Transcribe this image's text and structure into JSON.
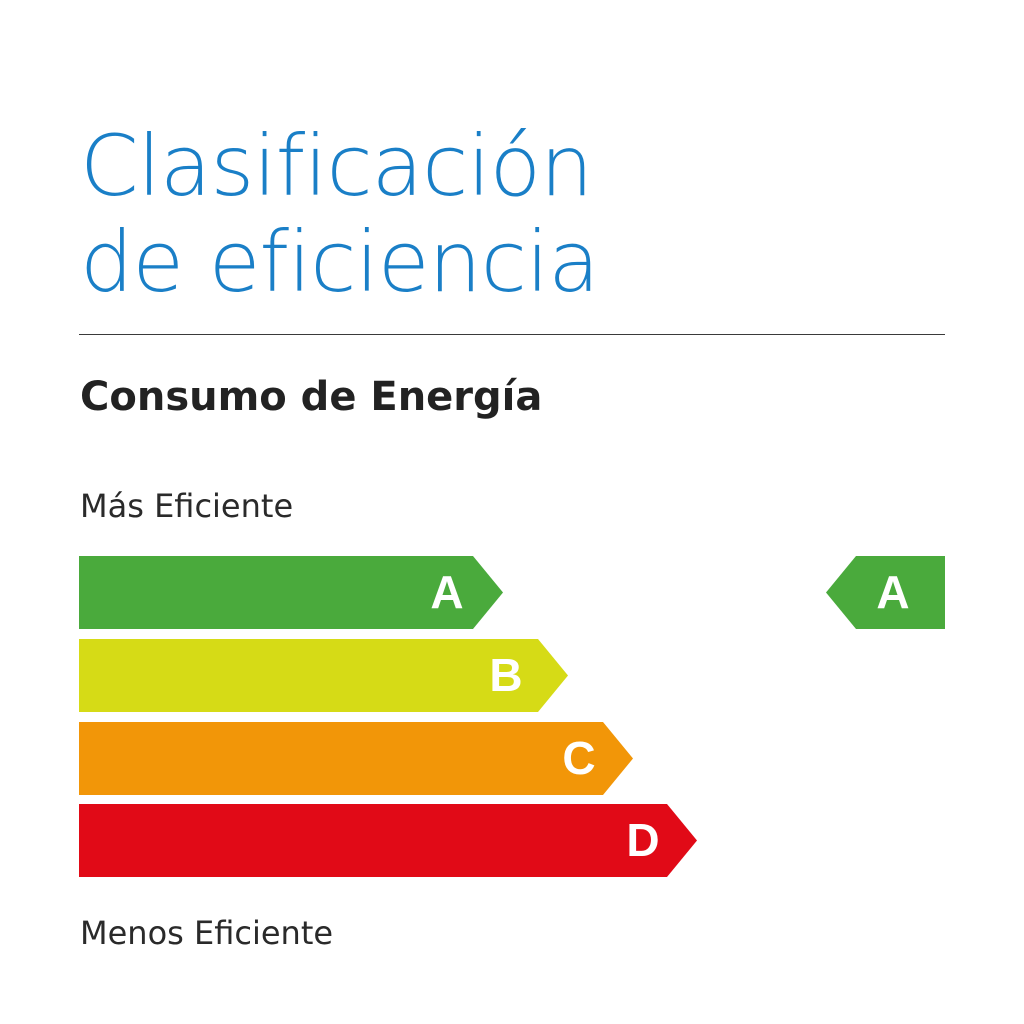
{
  "title": {
    "line1": "Clasificación",
    "line2": "de eficiencia"
  },
  "subtitle": "Consumo de Energía",
  "scale": {
    "top_label": "Más Eficiente",
    "bottom_label": "Menos Eficiente"
  },
  "bands": [
    {
      "letter": "A",
      "color": "#4aaa3c"
    },
    {
      "letter": "B",
      "color": "#d6db16"
    },
    {
      "letter": "C",
      "color": "#f29608"
    },
    {
      "letter": "D",
      "color": "#e10a17"
    }
  ],
  "rating": {
    "letter": "A",
    "color": "#4aaa3c"
  }
}
